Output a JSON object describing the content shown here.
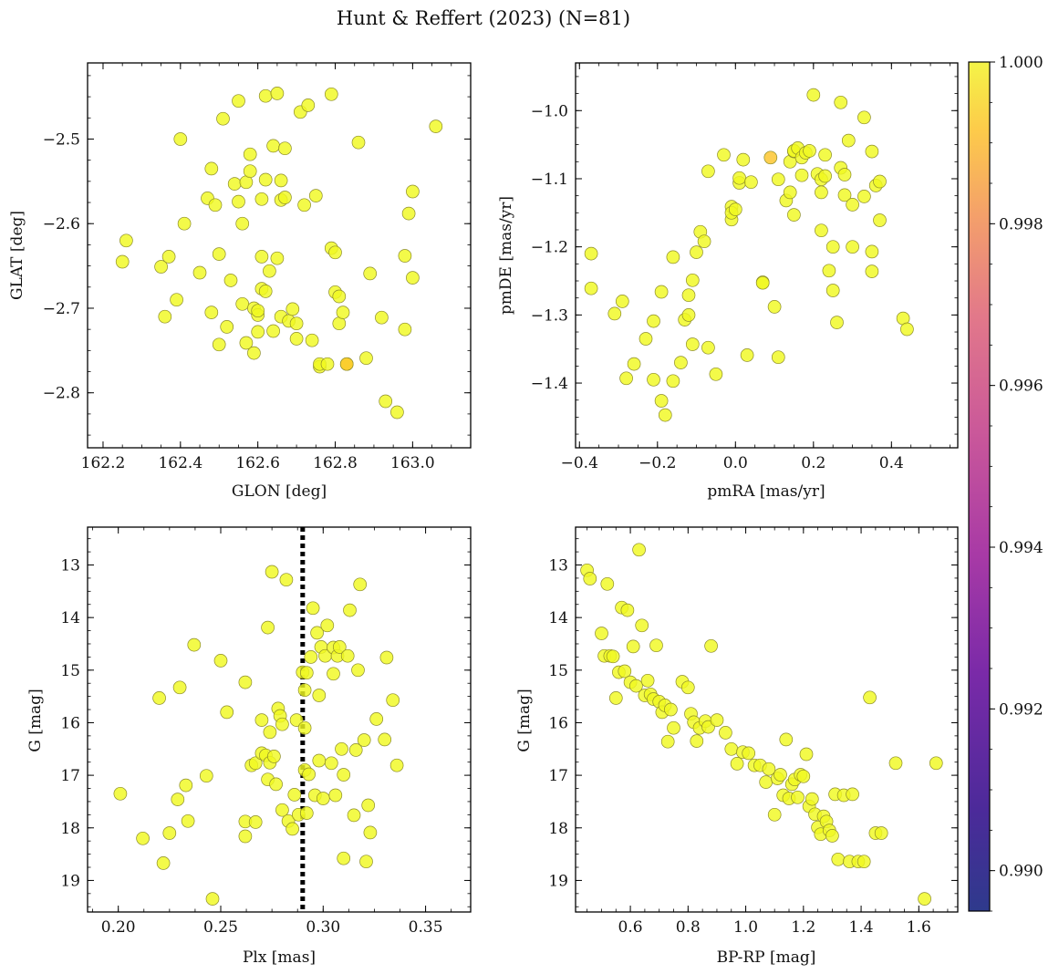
{
  "figure": {
    "title": "Hunt & Reffert (2023) (N=81)",
    "colorbar": {
      "ticks": [
        "0.990",
        "0.992",
        "0.994",
        "0.996",
        "0.998",
        "1.000"
      ],
      "range": [
        0.9895,
        1.0
      ],
      "colormap": "plasma"
    },
    "marker_color": "#f0f921",
    "highlight_color": "#fdc52a"
  },
  "chart_data": [
    {
      "type": "scatter",
      "xlabel": "GLON [deg]",
      "ylabel": "GLAT [deg]",
      "xlim": [
        162.16,
        163.15
      ],
      "ylim": [
        -2.865,
        -2.41
      ],
      "xticks": [
        "162.2",
        "162.4",
        "162.6",
        "162.8",
        "163.0"
      ],
      "yticks": [
        "−2.5",
        "−2.6",
        "−2.7",
        "−2.8"
      ],
      "x": [
        162.25,
        162.26,
        162.35,
        162.36,
        162.37,
        162.39,
        162.4,
        162.41,
        162.45,
        162.47,
        162.48,
        162.48,
        162.49,
        162.5,
        162.5,
        162.51,
        162.52,
        162.53,
        162.54,
        162.55,
        162.55,
        162.56,
        162.56,
        162.57,
        162.57,
        162.58,
        162.58,
        162.59,
        162.59,
        162.6,
        162.6,
        162.6,
        162.61,
        162.61,
        162.61,
        162.62,
        162.62,
        162.62,
        162.63,
        162.64,
        162.64,
        162.65,
        162.65,
        162.66,
        162.66,
        162.66,
        162.67,
        162.67,
        162.68,
        162.69,
        162.7,
        162.7,
        162.71,
        162.72,
        162.73,
        162.74,
        162.75,
        162.76,
        162.76,
        162.78,
        162.79,
        162.79,
        162.8,
        162.8,
        162.81,
        162.81,
        162.82,
        162.83,
        162.83,
        162.86,
        162.88,
        162.89,
        162.92,
        162.93,
        162.96,
        162.98,
        162.98,
        162.99,
        163.0,
        163.0,
        163.06
      ],
      "y": [
        -2.645,
        -2.62,
        -2.651,
        -2.71,
        -2.639,
        -2.69,
        -2.5,
        -2.6,
        -2.658,
        -2.57,
        -2.535,
        -2.705,
        -2.578,
        -2.743,
        -2.636,
        -2.476,
        -2.722,
        -2.667,
        -2.553,
        -2.455,
        -2.574,
        -2.6,
        -2.695,
        -2.741,
        -2.551,
        -2.518,
        -2.538,
        -2.753,
        -2.7,
        -2.708,
        -2.703,
        -2.728,
        -2.639,
        -2.677,
        -2.571,
        -2.449,
        -2.68,
        -2.548,
        -2.656,
        -2.727,
        -2.508,
        -2.641,
        -2.446,
        -2.71,
        -2.549,
        -2.572,
        -2.511,
        -2.569,
        -2.715,
        -2.701,
        -2.718,
        -2.736,
        -2.468,
        -2.578,
        -2.46,
        -2.738,
        -2.567,
        -2.769,
        -2.766,
        -2.766,
        -2.447,
        -2.629,
        -2.634,
        -2.681,
        -2.718,
        -2.686,
        -2.705,
        -2.766,
        -2.766,
        -2.504,
        -2.759,
        -2.659,
        -2.711,
        -2.81,
        -2.823,
        -2.638,
        -2.725,
        -2.588,
        -2.562,
        -2.664,
        -2.485
      ],
      "highlight_index": 68
    },
    {
      "type": "scatter",
      "xlabel": "pmRA [mas/yr]",
      "ylabel": "pmDE [mas/yr]",
      "xlim": [
        -0.41,
        0.57
      ],
      "ylim": [
        -1.495,
        -0.93
      ],
      "xticks": [
        "−0.4",
        "−0.2",
        "0.0",
        "0.2",
        "0.4"
      ],
      "yticks": [
        "−1.0",
        "−1.1",
        "−1.2",
        "−1.3",
        "−1.4"
      ],
      "x": [
        -0.37,
        -0.37,
        -0.31,
        -0.29,
        -0.28,
        -0.26,
        -0.23,
        -0.21,
        -0.21,
        -0.19,
        -0.19,
        -0.18,
        -0.16,
        -0.16,
        -0.14,
        -0.13,
        -0.12,
        -0.12,
        -0.11,
        -0.11,
        -0.1,
        -0.09,
        -0.08,
        -0.07,
        -0.07,
        -0.05,
        -0.03,
        -0.01,
        -0.01,
        -0.01,
        0.0,
        0.01,
        0.01,
        0.02,
        0.03,
        0.04,
        0.07,
        0.07,
        0.09,
        0.1,
        0.11,
        0.11,
        0.13,
        0.14,
        0.14,
        0.15,
        0.15,
        0.15,
        0.16,
        0.17,
        0.17,
        0.18,
        0.19,
        0.2,
        0.21,
        0.22,
        0.22,
        0.22,
        0.23,
        0.23,
        0.24,
        0.25,
        0.25,
        0.26,
        0.27,
        0.27,
        0.28,
        0.28,
        0.29,
        0.3,
        0.3,
        0.33,
        0.33,
        0.35,
        0.35,
        0.35,
        0.36,
        0.37,
        0.37,
        0.43,
        0.44
      ],
      "y": [
        -1.21,
        -1.261,
        -1.298,
        -1.28,
        -1.393,
        -1.372,
        -1.335,
        -1.309,
        -1.395,
        -1.426,
        -1.266,
        -1.447,
        -1.215,
        -1.397,
        -1.37,
        -1.307,
        -1.271,
        -1.3,
        -1.249,
        -1.343,
        -1.208,
        -1.178,
        -1.192,
        -1.348,
        -1.089,
        -1.387,
        -1.065,
        -1.16,
        -1.141,
        -1.15,
        -1.145,
        -1.106,
        -1.099,
        -1.072,
        -1.359,
        -1.105,
        -1.252,
        -1.253,
        -1.069,
        -1.288,
        -1.101,
        -1.362,
        -1.132,
        -1.075,
        -1.12,
        -1.06,
        -1.059,
        -1.153,
        -1.055,
        -1.095,
        -1.069,
        -1.062,
        -1.059,
        -0.977,
        -1.093,
        -1.101,
        -1.176,
        -1.12,
        -1.096,
        -1.065,
        -1.235,
        -1.264,
        -1.2,
        -1.311,
        -1.084,
        -0.988,
        -1.124,
        -1.094,
        -1.044,
        -1.2,
        -1.138,
        -1.01,
        -1.126,
        -1.207,
        -1.06,
        -1.236,
        -1.11,
        -1.104,
        -1.161,
        -1.305,
        -1.321
      ],
      "highlight_index": 38
    },
    {
      "type": "scatter",
      "xlabel": "Plx [mas]",
      "ylabel": "G [mag]",
      "xlim": [
        0.185,
        0.372
      ],
      "ylim": [
        19.6,
        12.28
      ],
      "yinverted": true,
      "vline": 0.29,
      "xticks": [
        "0.20",
        "0.25",
        "0.30",
        "0.35"
      ],
      "yticks": [
        "13",
        "14",
        "15",
        "16",
        "17",
        "18",
        "19"
      ],
      "x": [
        0.201,
        0.212,
        0.22,
        0.222,
        0.225,
        0.229,
        0.23,
        0.233,
        0.234,
        0.237,
        0.243,
        0.246,
        0.25,
        0.253,
        0.262,
        0.262,
        0.262,
        0.265,
        0.267,
        0.267,
        0.27,
        0.27,
        0.272,
        0.273,
        0.273,
        0.274,
        0.274,
        0.275,
        0.276,
        0.277,
        0.278,
        0.279,
        0.28,
        0.28,
        0.282,
        0.283,
        0.285,
        0.286,
        0.287,
        0.288,
        0.29,
        0.291,
        0.291,
        0.291,
        0.292,
        0.292,
        0.293,
        0.294,
        0.295,
        0.296,
        0.297,
        0.298,
        0.298,
        0.299,
        0.3,
        0.301,
        0.302,
        0.304,
        0.305,
        0.305,
        0.306,
        0.307,
        0.308,
        0.309,
        0.31,
        0.31,
        0.312,
        0.313,
        0.315,
        0.316,
        0.317,
        0.318,
        0.32,
        0.321,
        0.322,
        0.323,
        0.326,
        0.33,
        0.331,
        0.334,
        0.336
      ],
      "y": [
        17.35,
        18.2,
        15.53,
        18.67,
        18.1,
        17.46,
        15.33,
        17.19,
        17.87,
        14.52,
        17.01,
        19.35,
        14.82,
        15.8,
        15.23,
        17.88,
        18.16,
        16.81,
        17.89,
        16.77,
        16.58,
        15.95,
        16.62,
        17.08,
        14.19,
        16.76,
        16.18,
        13.13,
        16.64,
        17.17,
        15.73,
        15.87,
        16.03,
        17.66,
        13.28,
        17.87,
        18.02,
        17.37,
        15.95,
        17.75,
        15.04,
        16.9,
        16.1,
        15.38,
        17.72,
        15.05,
        16.98,
        14.75,
        13.82,
        17.38,
        14.29,
        16.72,
        15.48,
        14.56,
        17.44,
        14.73,
        14.15,
        16.77,
        15.07,
        14.57,
        17.38,
        14.73,
        14.56,
        16.5,
        18.58,
        16.99,
        14.73,
        13.86,
        17.76,
        16.52,
        15.0,
        13.37,
        16.33,
        18.64,
        17.57,
        18.09,
        15.93,
        16.32,
        14.76,
        15.57,
        16.81
      ],
      "highlight_index": -1
    },
    {
      "type": "scatter",
      "xlabel": "BP-RP [mag]",
      "ylabel": "G [mag]",
      "xlim": [
        0.41,
        1.735
      ],
      "ylim": [
        19.6,
        12.28
      ],
      "yinverted": true,
      "xticks": [
        "0.6",
        "0.8",
        "1.0",
        "1.2",
        "1.4",
        "1.6"
      ],
      "yticks": [
        "13",
        "14",
        "15",
        "16",
        "17",
        "18",
        "19"
      ],
      "x": [
        0.45,
        0.46,
        0.5,
        0.51,
        0.52,
        0.53,
        0.54,
        0.55,
        0.56,
        0.57,
        0.58,
        0.59,
        0.6,
        0.61,
        0.62,
        0.63,
        0.64,
        0.65,
        0.66,
        0.67,
        0.68,
        0.69,
        0.7,
        0.71,
        0.72,
        0.73,
        0.74,
        0.75,
        0.78,
        0.8,
        0.81,
        0.82,
        0.83,
        0.84,
        0.86,
        0.87,
        0.88,
        0.9,
        0.93,
        0.95,
        0.97,
        0.99,
        1.01,
        1.03,
        1.05,
        1.07,
        1.08,
        1.1,
        1.11,
        1.12,
        1.13,
        1.14,
        1.15,
        1.16,
        1.17,
        1.18,
        1.19,
        1.2,
        1.21,
        1.22,
        1.23,
        1.24,
        1.25,
        1.26,
        1.27,
        1.28,
        1.29,
        1.3,
        1.31,
        1.32,
        1.34,
        1.36,
        1.37,
        1.39,
        1.41,
        1.43,
        1.45,
        1.47,
        1.52,
        1.62,
        1.66
      ],
      "y": [
        13.1,
        13.26,
        14.3,
        14.73,
        13.36,
        14.73,
        14.74,
        15.53,
        15.04,
        13.81,
        15.02,
        13.86,
        15.23,
        14.55,
        15.3,
        12.71,
        14.15,
        15.48,
        15.2,
        15.46,
        15.55,
        14.53,
        15.6,
        15.8,
        15.67,
        16.36,
        15.75,
        16.1,
        15.22,
        15.33,
        15.83,
        15.99,
        16.35,
        16.1,
        15.97,
        16.08,
        14.54,
        15.95,
        16.19,
        16.5,
        16.78,
        16.56,
        16.58,
        16.81,
        16.81,
        17.13,
        16.88,
        17.75,
        17.06,
        16.99,
        17.38,
        16.32,
        17.44,
        17.17,
        17.08,
        17.42,
        16.99,
        17.02,
        16.6,
        17.59,
        17.45,
        17.74,
        17.99,
        18.12,
        17.78,
        17.88,
        18.05,
        18.15,
        17.36,
        18.6,
        17.38,
        18.64,
        17.36,
        18.64,
        18.64,
        15.52,
        18.1,
        18.1,
        16.77,
        19.35,
        16.77
      ],
      "highlight_index": -1
    }
  ]
}
